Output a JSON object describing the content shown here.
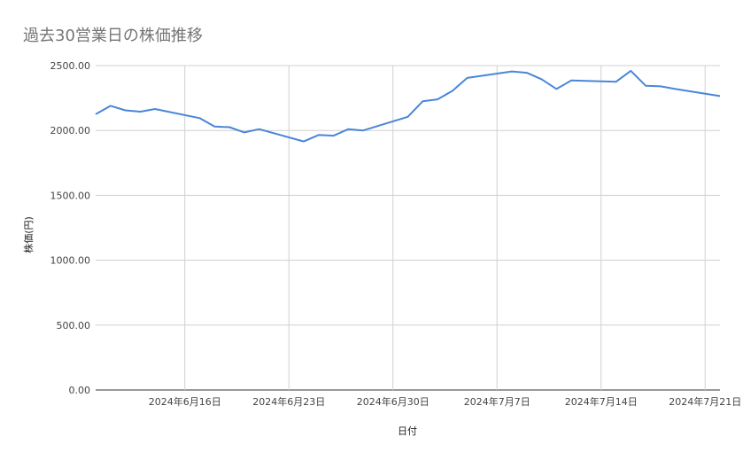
{
  "chart_data": {
    "type": "line",
    "title": "過去30営業日の株価推移",
    "xlabel": "日付",
    "ylabel": "株価(円)",
    "ylim": [
      0,
      2500
    ],
    "yticks": [
      "0.00",
      "500.00",
      "1000.00",
      "1500.00",
      "2000.00",
      "2500.00"
    ],
    "xticks": [
      {
        "date": "2024-06-16",
        "label": "2024年6月16日"
      },
      {
        "date": "2024-06-23",
        "label": "2024年6月23日"
      },
      {
        "date": "2024-06-30",
        "label": "2024年6月30日"
      },
      {
        "date": "2024-07-07",
        "label": "2024年7月7日"
      },
      {
        "date": "2024-07-14",
        "label": "2024年7月14日"
      },
      {
        "date": "2024-07-21",
        "label": "2024年7月21日"
      }
    ],
    "xlim": [
      "2024-06-10",
      "2024-07-22"
    ],
    "grid": true,
    "line_color": "#4a86d8",
    "series": [
      {
        "x": [
          "2024-06-10",
          "2024-06-11",
          "2024-06-12",
          "2024-06-13",
          "2024-06-14",
          "2024-06-17",
          "2024-06-18",
          "2024-06-19",
          "2024-06-20",
          "2024-06-21",
          "2024-06-24",
          "2024-06-25",
          "2024-06-26",
          "2024-06-27",
          "2024-06-28",
          "2024-07-01",
          "2024-07-02",
          "2024-07-03",
          "2024-07-04",
          "2024-07-05",
          "2024-07-08",
          "2024-07-09",
          "2024-07-10",
          "2024-07-11",
          "2024-07-12",
          "2024-07-15",
          "2024-07-16",
          "2024-07-17",
          "2024-07-18",
          "2024-07-19",
          "2024-07-22"
        ],
        "values": [
          2125,
          2190,
          2155,
          2145,
          2165,
          2095,
          2030,
          2025,
          1985,
          2010,
          1915,
          1965,
          1960,
          2010,
          2000,
          2105,
          2225,
          2240,
          2305,
          2405,
          2455,
          2445,
          2395,
          2320,
          2385,
          2375,
          2460,
          2345,
          2340,
          2320,
          2265
        ]
      }
    ]
  }
}
